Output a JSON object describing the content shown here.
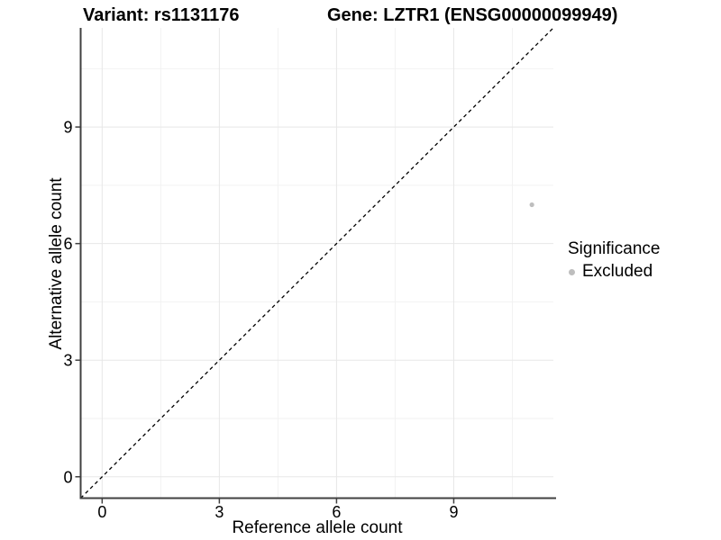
{
  "titles": {
    "variant": "Variant: rs1131176",
    "gene": "Gene: LZTR1 (ENSG00000099949)"
  },
  "chart_data": {
    "type": "scatter",
    "xlabel": "Reference allele count",
    "ylabel": "Alternative allele count",
    "xlim": [
      -0.55,
      11.55
    ],
    "ylim": [
      -0.55,
      11.55
    ],
    "x_ticks": [
      0,
      3,
      6,
      9
    ],
    "y_ticks": [
      0,
      3,
      6,
      9
    ],
    "x_minor": [
      1.5,
      4.5,
      7.5,
      10.5
    ],
    "y_minor": [
      1.5,
      4.5,
      7.5,
      10.5
    ],
    "grid": true,
    "identity_line": {
      "style": "dashed",
      "from": [
        -0.55,
        -0.55
      ],
      "to": [
        11.55,
        11.55
      ]
    },
    "series": [
      {
        "name": "Excluded",
        "color": "#bebebe",
        "points": [
          [
            11,
            7
          ]
        ]
      }
    ],
    "legend": {
      "title": "Significance",
      "position": "right",
      "entries": [
        {
          "label": "Excluded",
          "color": "#bebebe",
          "marker": "circle-icon"
        }
      ]
    }
  },
  "colors": {
    "background": "#ffffff",
    "major_grid": "#e7e7e7",
    "minor_grid": "#f2f2f2",
    "axis_line": "#404040",
    "tick_mark": "#404040",
    "text": "#000000",
    "identity_line": "#000000"
  }
}
